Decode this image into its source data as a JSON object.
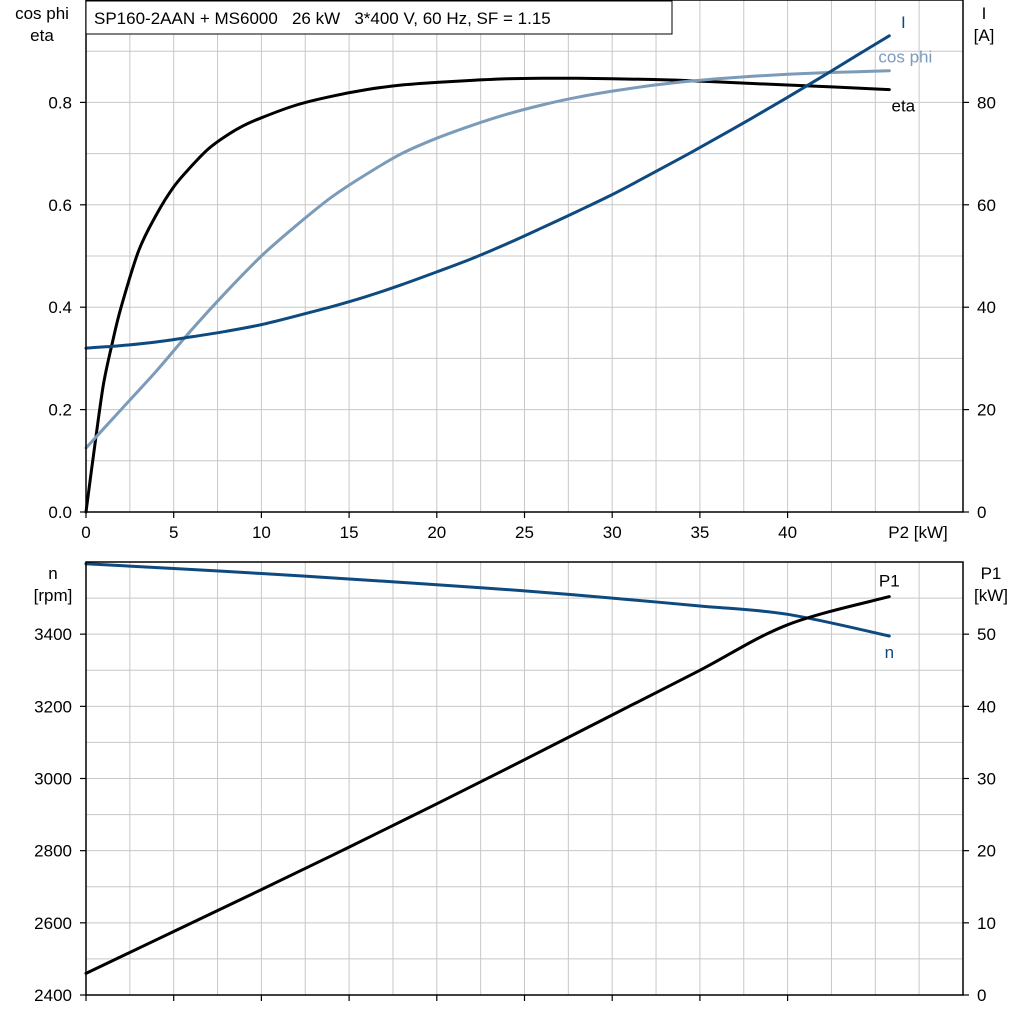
{
  "title": "SP160-2AAN + MS6000   26 kW   3*400 V, 60 Hz, SF = 1.15",
  "colors": {
    "eta": "#000000",
    "cos_phi": "#7b9bb9",
    "current": "#0e4a80",
    "speed": "#0e4a80",
    "p1": "#000000"
  },
  "chart_data": [
    {
      "type": "line",
      "name": "efficiency-chart",
      "xlabel": "P2 [kW]",
      "ylabel_left_line1": "cos phi",
      "ylabel_left_line2": "eta",
      "ylabel_right_line1": "I",
      "ylabel_right_line2": "[A]",
      "xlim": [
        0,
        50
      ],
      "ylim_left": [
        0,
        1.0
      ],
      "ylim_right": [
        0,
        100
      ],
      "x_ticks": [
        0,
        5,
        10,
        15,
        20,
        25,
        30,
        35,
        40
      ],
      "x_tick_labels": [
        "0",
        "5",
        "10",
        "15",
        "20",
        "25",
        "30",
        "35",
        "40"
      ],
      "y_left_ticks": [
        0,
        0.2,
        0.4,
        0.6,
        0.8
      ],
      "y_left_tick_labels": [
        "0.0",
        "0.2",
        "0.4",
        "0.6",
        "0.8"
      ],
      "y_right_ticks": [
        0,
        20,
        40,
        60,
        80
      ],
      "y_right_tick_labels": [
        "0",
        "20",
        "40",
        "60",
        "80"
      ],
      "grid": true,
      "series": [
        {
          "name": "eta",
          "axis": "left",
          "x": [
            0,
            0.5,
            1,
            1.5,
            2,
            3,
            4,
            5,
            6,
            7,
            8,
            9,
            10,
            12,
            14,
            16,
            18,
            20,
            22,
            24,
            26,
            28,
            30,
            32,
            34,
            36,
            38,
            40,
            42,
            44,
            45.8
          ],
          "y": [
            0,
            0.13,
            0.25,
            0.33,
            0.4,
            0.51,
            0.58,
            0.635,
            0.675,
            0.71,
            0.735,
            0.755,
            0.77,
            0.795,
            0.812,
            0.825,
            0.834,
            0.839,
            0.843,
            0.846,
            0.847,
            0.847,
            0.846,
            0.845,
            0.843,
            0.84,
            0.837,
            0.834,
            0.831,
            0.828,
            0.825
          ]
        },
        {
          "name": "cos phi",
          "axis": "left",
          "x": [
            0,
            2,
            4,
            6,
            8,
            10,
            12,
            14,
            16,
            18,
            20,
            22,
            24,
            26,
            28,
            30,
            32,
            34,
            36,
            38,
            40,
            42,
            44,
            45.8
          ],
          "y": [
            0.125,
            0.2,
            0.275,
            0.355,
            0.43,
            0.5,
            0.56,
            0.615,
            0.66,
            0.7,
            0.73,
            0.755,
            0.777,
            0.795,
            0.81,
            0.822,
            0.832,
            0.84,
            0.846,
            0.851,
            0.855,
            0.858,
            0.86,
            0.862
          ]
        },
        {
          "name": "I",
          "axis": "right",
          "x": [
            0,
            2,
            4,
            6,
            8,
            10,
            12,
            14,
            16,
            18,
            20,
            22,
            24,
            26,
            28,
            30,
            32,
            34,
            36,
            38,
            40,
            42,
            44,
            45.8
          ],
          "y": [
            32,
            32.5,
            33.2,
            34.2,
            35.3,
            36.6,
            38.3,
            40.1,
            42.1,
            44.4,
            46.9,
            49.5,
            52.4,
            55.5,
            58.7,
            62,
            65.6,
            69.3,
            73.1,
            77,
            81,
            85.1,
            89.3,
            93
          ]
        }
      ],
      "curve_labels": {
        "eta": "eta",
        "cos_phi": "cos phi",
        "I": "I"
      }
    },
    {
      "type": "line",
      "name": "speed-power-chart",
      "ylabel_left_line1": "n",
      "ylabel_left_line2": "[rpm]",
      "ylabel_right_line1": "P1",
      "ylabel_right_line2": "[kW]",
      "xlim": [
        0,
        50
      ],
      "ylim_left": [
        2400,
        3600
      ],
      "ylim_right": [
        0,
        60
      ],
      "x_ticks": [
        0,
        5,
        10,
        15,
        20,
        25,
        30,
        35,
        40
      ],
      "y_left_ticks": [
        2400,
        2600,
        2800,
        3000,
        3200,
        3400
      ],
      "y_left_tick_labels": [
        "2400",
        "2600",
        "2800",
        "3000",
        "3200",
        "3400"
      ],
      "y_right_ticks": [
        0,
        10,
        20,
        30,
        40,
        50
      ],
      "y_right_tick_labels": [
        "0",
        "10",
        "20",
        "30",
        "40",
        "50"
      ],
      "grid": true,
      "series": [
        {
          "name": "n",
          "axis": "left",
          "x": [
            0,
            5,
            10,
            15,
            20,
            25,
            30,
            35,
            40,
            45.8
          ],
          "y": [
            3595,
            3582,
            3568,
            3553,
            3537,
            3520,
            3500,
            3478,
            3455,
            3395
          ]
        },
        {
          "name": "P1",
          "axis": "right",
          "x": [
            0,
            5,
            10,
            15,
            20,
            25,
            30,
            35,
            40,
            45.8
          ],
          "y": [
            3.0,
            8.8,
            14.6,
            20.5,
            26.5,
            32.6,
            38.8,
            45.0,
            51.3,
            55.2
          ]
        }
      ],
      "curve_labels": {
        "n": "n",
        "P1": "P1"
      }
    }
  ]
}
